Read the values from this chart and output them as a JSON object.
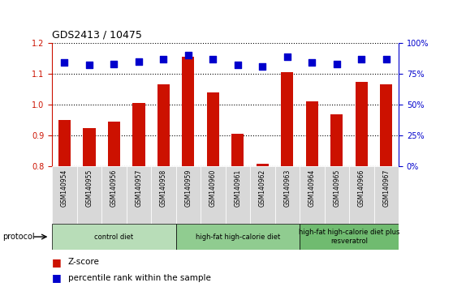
{
  "title": "GDS2413 / 10475",
  "samples": [
    "GSM140954",
    "GSM140955",
    "GSM140956",
    "GSM140957",
    "GSM140958",
    "GSM140959",
    "GSM140960",
    "GSM140961",
    "GSM140962",
    "GSM140963",
    "GSM140964",
    "GSM140965",
    "GSM140966",
    "GSM140967"
  ],
  "zscore": [
    0.95,
    0.925,
    0.945,
    1.005,
    1.065,
    1.155,
    1.04,
    0.905,
    0.808,
    1.105,
    1.01,
    0.97,
    1.075,
    1.065
  ],
  "percentile": [
    84,
    82,
    83,
    85,
    87,
    90,
    87,
    82,
    81,
    89,
    84,
    83,
    87,
    87
  ],
  "bar_color": "#cc1100",
  "dot_color": "#0000cc",
  "ylim_left": [
    0.8,
    1.2
  ],
  "ylim_right": [
    0,
    100
  ],
  "yticks_left": [
    0.8,
    0.9,
    1.0,
    1.1,
    1.2
  ],
  "yticks_right": [
    0,
    25,
    50,
    75,
    100
  ],
  "ytick_labels_right": [
    "0%",
    "25%",
    "50%",
    "75%",
    "100%"
  ],
  "groups": [
    {
      "label": "control diet",
      "start": 0,
      "end": 5,
      "color": "#b8ddb8"
    },
    {
      "label": "high-fat high-calorie diet",
      "start": 5,
      "end": 10,
      "color": "#90cc90"
    },
    {
      "label": "high-fat high-calorie diet plus\nresveratrol",
      "start": 10,
      "end": 14,
      "color": "#70bb70"
    }
  ],
  "protocol_label": "protocol",
  "legend_zscore": "Z-score",
  "legend_percentile": "percentile rank within the sample",
  "bar_color_legend": "#cc1100",
  "dot_color_legend": "#0000cc",
  "tick_label_color_left": "#cc1100",
  "tick_label_color_right": "#0000cc",
  "bar_width": 0.5,
  "dot_size": 40,
  "sample_bg_color": "#d8d8d8",
  "plot_bg_color": "#ffffff"
}
